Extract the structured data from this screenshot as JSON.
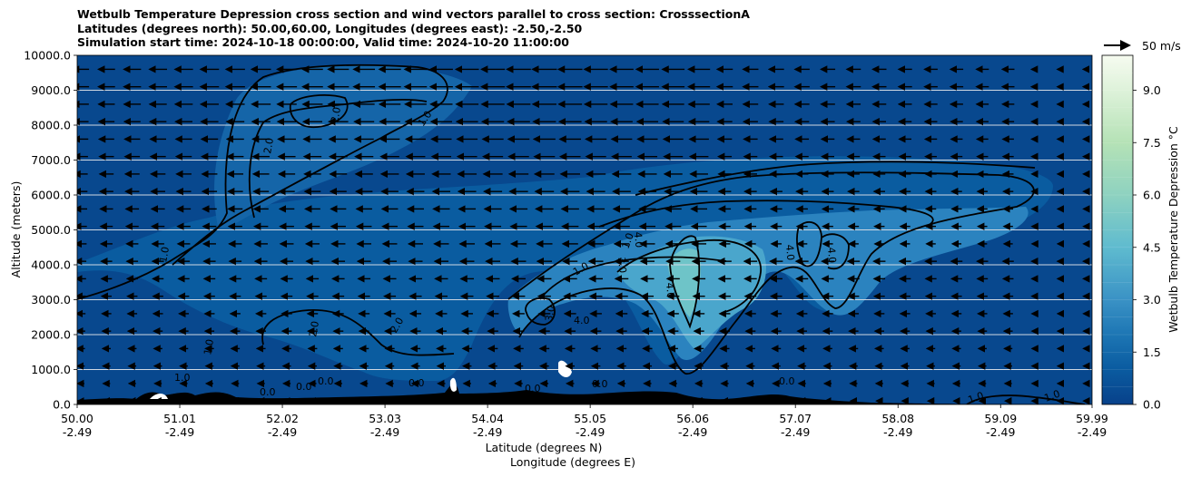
{
  "chart_data": {
    "type": "contour",
    "title_lines": [
      "Wetbulb Temperature Depression cross section and wind vectors parallel to cross section: CrosssectionA",
      "Latitudes (degrees north): 50.00,60.00, Longitudes (degrees east): -2.50,-2.50",
      "Simulation start time: 2024-10-18 00:00:00, Valid time: 2024-10-20 11:00:00"
    ],
    "xlabel": "Latitude (degrees N)",
    "xlabel2": "Longitude (degrees E)",
    "ylabel": "Altitude (meters)",
    "colorbar_label": "Wetbulb Temperature Depression $^\\circ$C",
    "quiver_key_label": "50 m/s",
    "xlim": [
      50.0,
      59.99
    ],
    "ylim": [
      0,
      10000
    ],
    "x_ticks": [
      {
        "lat": "50.00",
        "lon": "-2.49",
        "value": 50.0
      },
      {
        "lat": "51.01",
        "lon": "-2.49",
        "value": 51.01
      },
      {
        "lat": "52.02",
        "lon": "-2.49",
        "value": 52.02
      },
      {
        "lat": "53.03",
        "lon": "-2.49",
        "value": 53.03
      },
      {
        "lat": "54.04",
        "lon": "-2.49",
        "value": 54.04
      },
      {
        "lat": "55.05",
        "lon": "-2.49",
        "value": 55.05
      },
      {
        "lat": "56.06",
        "lon": "-2.49",
        "value": 56.06
      },
      {
        "lat": "57.07",
        "lon": "-2.49",
        "value": 57.07
      },
      {
        "lat": "58.08",
        "lon": "-2.49",
        "value": 58.08
      },
      {
        "lat": "59.09",
        "lon": "-2.49",
        "value": 59.09
      },
      {
        "lat": "59.99",
        "lon": "-2.49",
        "value": 59.99
      }
    ],
    "y_ticks": [
      {
        "label": "0.0",
        "value": 0
      },
      {
        "label": "1000.0",
        "value": 1000
      },
      {
        "label": "2000.0",
        "value": 2000
      },
      {
        "label": "3000.0",
        "value": 3000
      },
      {
        "label": "4000.0",
        "value": 4000
      },
      {
        "label": "5000.0",
        "value": 5000
      },
      {
        "label": "6000.0",
        "value": 6000
      },
      {
        "label": "7000.0",
        "value": 7000
      },
      {
        "label": "8000.0",
        "value": 8000
      },
      {
        "label": "9000.0",
        "value": 9000
      },
      {
        "label": "10000.0",
        "value": 10000
      }
    ],
    "colorbar_ticks": [
      {
        "label": "0.0",
        "value": 0.0
      },
      {
        "label": "1.5",
        "value": 1.5
      },
      {
        "label": "3.0",
        "value": 3.0
      },
      {
        "label": "4.5",
        "value": 4.5
      },
      {
        "label": "6.0",
        "value": 6.0
      },
      {
        "label": "7.5",
        "value": 7.5
      },
      {
        "label": "9.0",
        "value": 9.0
      }
    ],
    "colorbar_range": [
      0,
      10
    ],
    "colorbar_levels": 20,
    "colormap": "GnBu_r",
    "grid": "horizontal",
    "contour_line_labels": [
      "1.0",
      "2.0",
      "3.0",
      "4.0",
      "0.0"
    ],
    "colors": {
      "background_field": "#08488e",
      "moist_layer": "#1b72b0",
      "moderate": "#3a91c4",
      "high": "#6cc3c9",
      "contour": "#000000",
      "terrain": "#000000",
      "grid": "#cfd8e3"
    }
  }
}
